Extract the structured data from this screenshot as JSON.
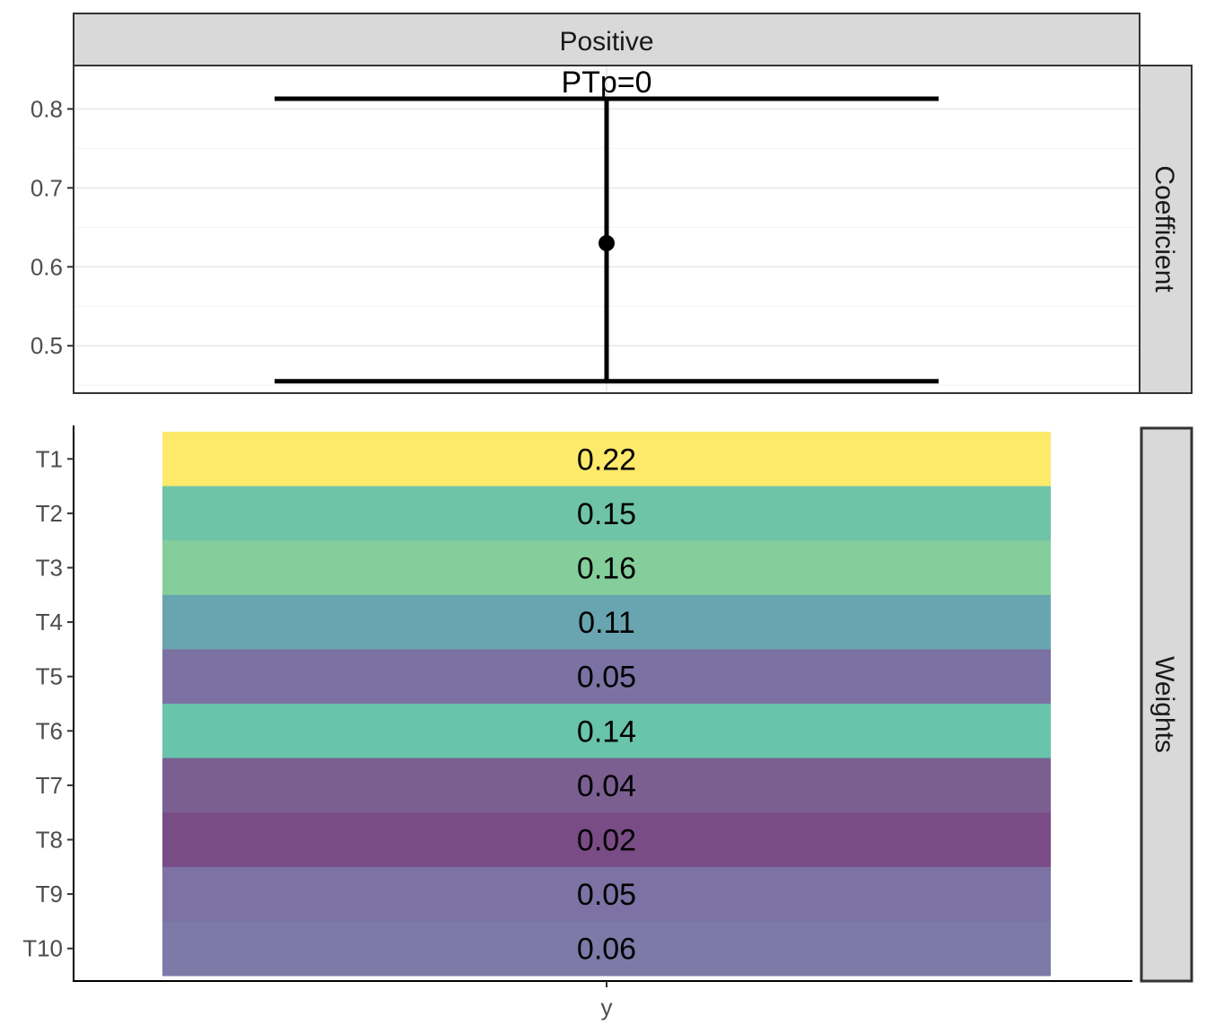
{
  "chart_data": [
    {
      "type": "errorbar",
      "panel_strip_top": "Positive",
      "panel_strip_right": "Coefficient",
      "annotation": "PTp=0",
      "x": [
        "y"
      ],
      "point": 0.63,
      "lower": 0.455,
      "upper": 0.813,
      "ylim": [
        0.44,
        0.855
      ],
      "yticks": [
        0.5,
        0.6,
        0.7,
        0.8
      ],
      "ytick_labels": [
        "0.5",
        "0.6",
        "0.7",
        "0.8"
      ],
      "grid": true
    },
    {
      "type": "heatmap",
      "panel_strip_right": "Weights",
      "x_label": "y",
      "categories": [
        "T1",
        "T2",
        "T3",
        "T4",
        "T5",
        "T6",
        "T7",
        "T8",
        "T9",
        "T10"
      ],
      "values": [
        0.22,
        0.15,
        0.16,
        0.11,
        0.05,
        0.14,
        0.04,
        0.02,
        0.05,
        0.06
      ],
      "labels": [
        "0.22",
        "0.15",
        "0.16",
        "0.11",
        "0.05",
        "0.14",
        "0.04",
        "0.02",
        "0.05",
        "0.06"
      ],
      "colors": [
        "#fdea6a",
        "#6fc4a8",
        "#84ce9b",
        "#69a5b0",
        "#7b72a3",
        "#68c4aa",
        "#7b5f91",
        "#7a4c86",
        "#7c72a3",
        "#7d7aa8"
      ],
      "grid": false
    }
  ]
}
